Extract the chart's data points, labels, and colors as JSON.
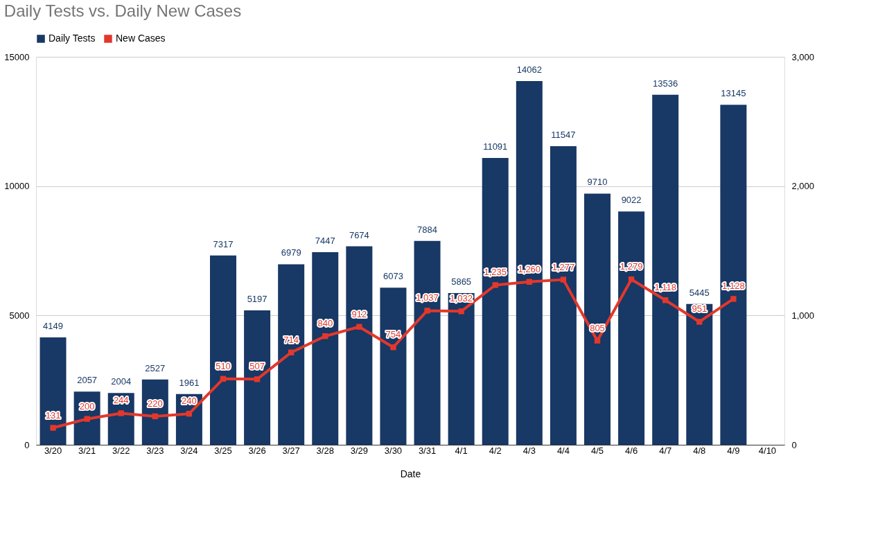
{
  "chart_data": {
    "type": "bar",
    "title": "Daily Tests vs. Daily New Cases",
    "xlabel": "Date",
    "categories": [
      "3/20",
      "3/21",
      "3/22",
      "3/23",
      "3/24",
      "3/25",
      "3/26",
      "3/27",
      "3/28",
      "3/29",
      "3/30",
      "3/31",
      "4/1",
      "4/2",
      "4/3",
      "4/4",
      "4/5",
      "4/6",
      "4/7",
      "4/8",
      "4/9",
      "4/10"
    ],
    "series": [
      {
        "name": "Daily Tests",
        "axis": "y",
        "color": "#183865",
        "values": [
          4149,
          2057,
          2004,
          2527,
          1961,
          7317,
          5197,
          6979,
          7447,
          7674,
          6073,
          7884,
          5865,
          11091,
          14062,
          11547,
          9710,
          9022,
          13536,
          5445,
          13145,
          null
        ]
      },
      {
        "name": "New Cases",
        "type": "line",
        "axis": "y2",
        "color": "#e2382c",
        "values": [
          131,
          200,
          244,
          220,
          240,
          510,
          507,
          714,
          840,
          912,
          754,
          1037,
          1032,
          1235,
          1260,
          1277,
          805,
          1279,
          1118,
          951,
          1128,
          null
        ],
        "value_labels": [
          "131",
          "200",
          "244",
          "220",
          "240",
          "510",
          "507",
          "714",
          "840",
          "912",
          "754",
          "1,037",
          "1,032",
          "1,235",
          "1,260",
          "1,277",
          "805",
          "1,279",
          "1,118",
          "951",
          "1,128",
          null
        ]
      }
    ],
    "ylim": [
      0,
      15000
    ],
    "yticks": [
      0,
      5000,
      10000,
      15000
    ],
    "y2lim": [
      0,
      3000
    ],
    "y2ticks": [
      0,
      {
        "value": 1000,
        "label": "1,000"
      },
      {
        "value": 2000,
        "label": "2,000"
      },
      {
        "value": 3000,
        "label": "3,000"
      }
    ],
    "data_labels": true,
    "grid": "y",
    "legend": "top",
    "marker": "square",
    "line_style": "solid"
  }
}
